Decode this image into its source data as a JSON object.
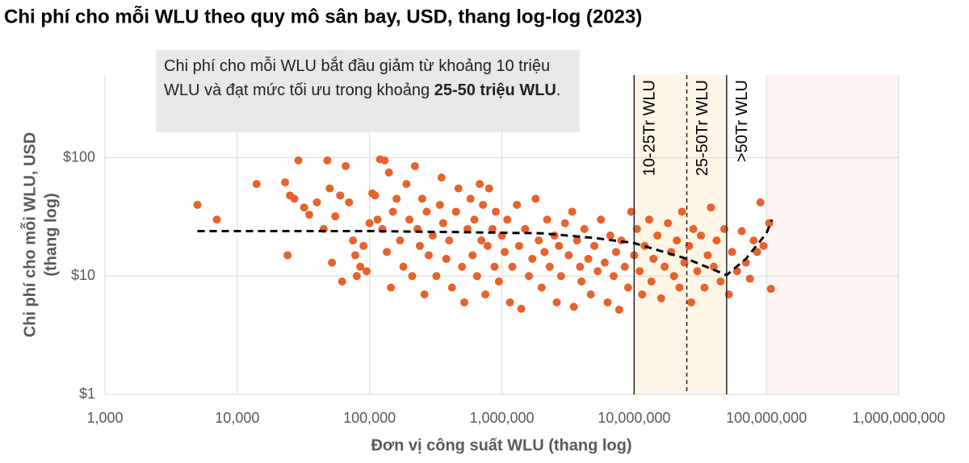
{
  "chart_data": {
    "type": "scatter",
    "title": "Chi phí cho mỗi WLU theo quy mô sân bay, USD, thang log-log (2023)",
    "xlabel": "Đơn vị công suất WLU (thang log)",
    "ylabel": [
      "Chi phí cho mỗi WLU, USD",
      "(thang log)"
    ],
    "xscale": "log",
    "yscale": "log",
    "grid": true,
    "color": "#e8622c",
    "xlim": [
      1000,
      1000000000
    ],
    "ylim": [
      1,
      500
    ],
    "xticks": [
      {
        "value": 1000,
        "label": "1,000"
      },
      {
        "value": 10000,
        "label": "10,000"
      },
      {
        "value": 100000,
        "label": "100,000"
      },
      {
        "value": 1000000,
        "label": "1,000,000"
      },
      {
        "value": 10000000,
        "label": "10,000,000"
      },
      {
        "value": 100000000,
        "label": "100,000,000"
      },
      {
        "value": 1000000000,
        "label": "1,000,000,000"
      }
    ],
    "yticks": [
      {
        "value": 1,
        "label": "$1"
      },
      {
        "value": 10,
        "label": "$10"
      },
      {
        "value": 100,
        "label": "$100"
      }
    ],
    "annotation": {
      "text": "Chi phí cho mỗi WLU bắt đầu giảm từ khoảng 10 triệu WLU và đạt mức tối ưu trong khoảng ",
      "bold": "25-50 triệu WLU",
      "tail": "."
    },
    "regions": [
      {
        "from": 10000000,
        "to": 50000000,
        "color": "#fdf5e6"
      },
      {
        "from": 100000000,
        "to": 1000000000,
        "color": "#fdf3f0"
      }
    ],
    "reference_lines": [
      {
        "x": 10000000,
        "label": "10-25Tr WLU",
        "dashed": false
      },
      {
        "x": 25000000,
        "label": "25-50Tr WLU",
        "dashed": true
      },
      {
        "x": 50000000,
        "label": ">50Tr WLU",
        "dashed": false
      }
    ],
    "trend": {
      "x": [
        5000,
        100000,
        500000,
        2000000,
        5000000,
        10000000,
        25000000,
        50000000,
        70000000,
        100000000,
        110000000
      ],
      "y": [
        24,
        24,
        23.5,
        23,
        21,
        19,
        14,
        10.2,
        14,
        23,
        30
      ]
    },
    "x": [
      5000,
      7000,
      14000,
      23000,
      24000,
      25000,
      27000,
      29000,
      32000,
      35000,
      40000,
      45000,
      48000,
      50000,
      52000,
      55000,
      60000,
      62000,
      66000,
      70000,
      75000,
      78000,
      80000,
      85000,
      90000,
      95000,
      100000,
      105000,
      110000,
      115000,
      120000,
      125000,
      130000,
      135000,
      140000,
      145000,
      150000,
      160000,
      170000,
      180000,
      190000,
      200000,
      210000,
      220000,
      230000,
      240000,
      250000,
      260000,
      270000,
      280000,
      300000,
      320000,
      340000,
      350000,
      360000,
      380000,
      400000,
      420000,
      450000,
      470000,
      500000,
      520000,
      550000,
      580000,
      600000,
      620000,
      650000,
      680000,
      700000,
      720000,
      750000,
      780000,
      800000,
      850000,
      880000,
      900000,
      950000,
      1000000,
      1050000,
      1100000,
      1150000,
      1200000,
      1300000,
      1350000,
      1400000,
      1500000,
      1600000,
      1700000,
      1800000,
      1900000,
      2000000,
      2100000,
      2200000,
      2300000,
      2500000,
      2600000,
      2700000,
      2800000,
      3000000,
      3200000,
      3400000,
      3500000,
      3700000,
      3900000,
      4000000,
      4200000,
      4500000,
      4700000,
      5000000,
      5300000,
      5600000,
      6000000,
      6300000,
      6600000,
      7000000,
      7300000,
      7700000,
      8000000,
      8500000,
      9000000,
      9500000,
      10000000,
      10500000,
      11000000,
      11500000,
      12000000,
      13000000,
      13500000,
      14000000,
      15000000,
      16000000,
      17000000,
      18000000,
      19000000,
      20000000,
      21000000,
      22000000,
      23000000,
      24000000,
      26000000,
      27000000,
      28000000,
      30000000,
      32000000,
      34000000,
      36000000,
      38000000,
      40000000,
      42000000,
      45000000,
      48000000,
      52000000,
      55000000,
      60000000,
      65000000,
      70000000,
      75000000,
      80000000,
      85000000,
      90000000,
      95000000,
      105000000,
      108000000
    ],
    "values": [
      40,
      30,
      60,
      62,
      15,
      48,
      45,
      95,
      38,
      33,
      42,
      25,
      95,
      55,
      13,
      32,
      48,
      9,
      85,
      42,
      20,
      15,
      10,
      12,
      18,
      11,
      28,
      50,
      48,
      30,
      97,
      25,
      95,
      16,
      75,
      8,
      35,
      45,
      20,
      12,
      60,
      30,
      10,
      85,
      25,
      18,
      45,
      7,
      35,
      15,
      22,
      10,
      40,
      68,
      28,
      14,
      20,
      8,
      35,
      55,
      12,
      6,
      25,
      45,
      15,
      30,
      10,
      60,
      20,
      40,
      7,
      18,
      55,
      25,
      12,
      35,
      9,
      22,
      16,
      30,
      6,
      12,
      40,
      18,
      5.3,
      25,
      10,
      14,
      45,
      20,
      8,
      16,
      30,
      12,
      22,
      6,
      18,
      10,
      28,
      15,
      35,
      5.5,
      20,
      12,
      9,
      25,
      14,
      7,
      18,
      11,
      30,
      13,
      6,
      22,
      10,
      16,
      5.2,
      20,
      12,
      8,
      35,
      15,
      25,
      11,
      7,
      18,
      30,
      9,
      14,
      22,
      6.5,
      12,
      28,
      16,
      10,
      20,
      8,
      35,
      13,
      18,
      6,
      25,
      11,
      22,
      8,
      15,
      38,
      12,
      20,
      9,
      25,
      7,
      16,
      11,
      24,
      13,
      9.5,
      20,
      16,
      42,
      18,
      28,
      7.8
    ]
  }
}
